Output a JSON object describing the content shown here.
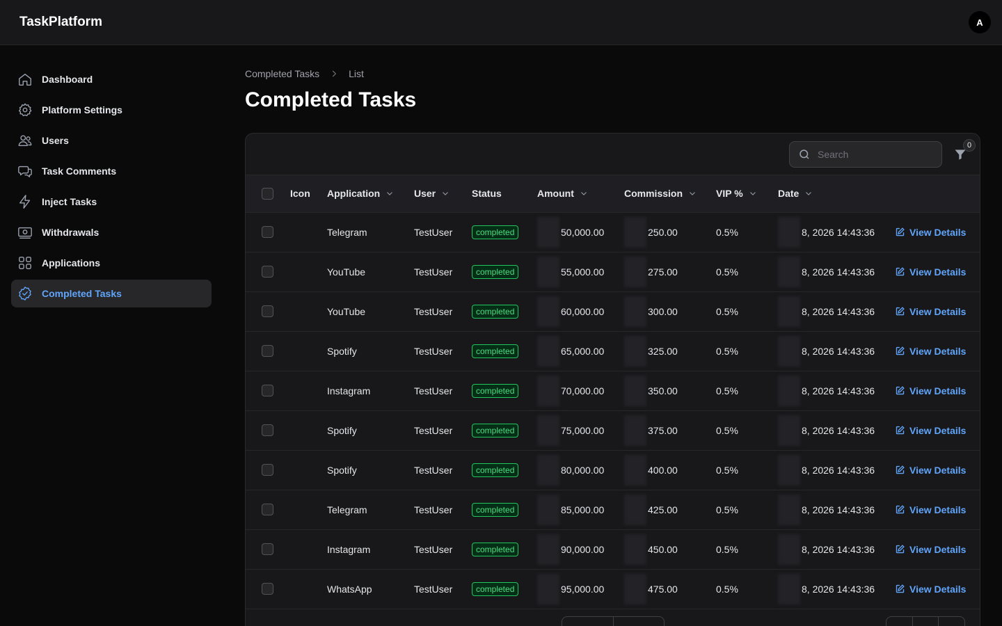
{
  "app": {
    "brand": "TaskPlatform",
    "avatar_initial": "A"
  },
  "sidebar": {
    "items": [
      {
        "label": "Dashboard",
        "icon": "home-icon"
      },
      {
        "label": "Platform Settings",
        "icon": "gear-icon"
      },
      {
        "label": "Users",
        "icon": "users-icon"
      },
      {
        "label": "Task Comments",
        "icon": "chat-icon"
      },
      {
        "label": "Inject Tasks",
        "icon": "bolt-icon"
      },
      {
        "label": "Withdrawals",
        "icon": "cash-icon"
      },
      {
        "label": "Applications",
        "icon": "grid-icon"
      },
      {
        "label": "Completed Tasks",
        "icon": "check-badge-icon",
        "active": true
      }
    ]
  },
  "breadcrumb": {
    "parent": "Completed Tasks",
    "current": "List"
  },
  "page": {
    "title": "Completed Tasks"
  },
  "toolbar": {
    "search_placeholder": "Search",
    "filter_count": "0"
  },
  "table": {
    "headers": {
      "icon": "Icon",
      "application": "Application",
      "user": "User",
      "status": "Status",
      "amount": "Amount",
      "commission": "Commission",
      "vip": "VIP %",
      "date": "Date"
    },
    "action_label": "View Details",
    "rows": [
      {
        "application": "Telegram",
        "user": "TestUser",
        "status": "completed",
        "amount": "50,000.00",
        "commission": "250.00",
        "vip": "0.5%",
        "date": "8, 2026 14:43:36"
      },
      {
        "application": "YouTube",
        "user": "TestUser",
        "status": "completed",
        "amount": "55,000.00",
        "commission": "275.00",
        "vip": "0.5%",
        "date": "8, 2026 14:43:36"
      },
      {
        "application": "YouTube",
        "user": "TestUser",
        "status": "completed",
        "amount": "60,000.00",
        "commission": "300.00",
        "vip": "0.5%",
        "date": "8, 2026 14:43:36"
      },
      {
        "application": "Spotify",
        "user": "TestUser",
        "status": "completed",
        "amount": "65,000.00",
        "commission": "325.00",
        "vip": "0.5%",
        "date": "8, 2026 14:43:36"
      },
      {
        "application": "Instagram",
        "user": "TestUser",
        "status": "completed",
        "amount": "70,000.00",
        "commission": "350.00",
        "vip": "0.5%",
        "date": "8, 2026 14:43:36"
      },
      {
        "application": "Spotify",
        "user": "TestUser",
        "status": "completed",
        "amount": "75,000.00",
        "commission": "375.00",
        "vip": "0.5%",
        "date": "8, 2026 14:43:36"
      },
      {
        "application": "Spotify",
        "user": "TestUser",
        "status": "completed",
        "amount": "80,000.00",
        "commission": "400.00",
        "vip": "0.5%",
        "date": "8, 2026 14:43:36"
      },
      {
        "application": "Telegram",
        "user": "TestUser",
        "status": "completed",
        "amount": "85,000.00",
        "commission": "425.00",
        "vip": "0.5%",
        "date": "8, 2026 14:43:36"
      },
      {
        "application": "Instagram",
        "user": "TestUser",
        "status": "completed",
        "amount": "90,000.00",
        "commission": "450.00",
        "vip": "0.5%",
        "date": "8, 2026 14:43:36"
      },
      {
        "application": "WhatsApp",
        "user": "TestUser",
        "status": "completed",
        "amount": "95,000.00",
        "commission": "475.00",
        "vip": "0.5%",
        "date": "8, 2026 14:43:36"
      }
    ]
  },
  "colors": {
    "accent": "#60a5fa",
    "status_green": "#4ade80",
    "background": "#0a0a0b",
    "surface": "#18181b"
  }
}
